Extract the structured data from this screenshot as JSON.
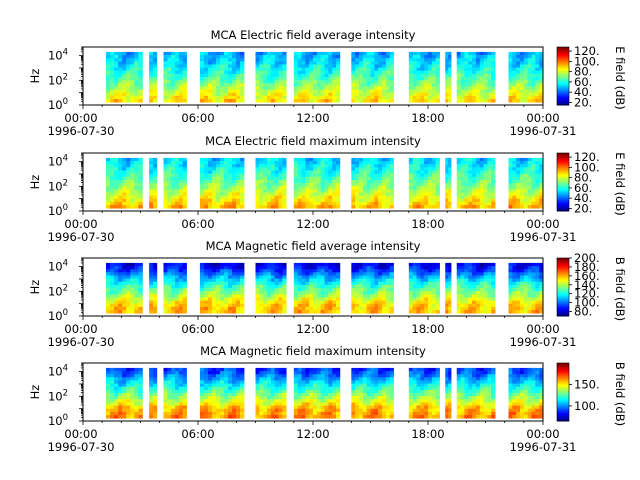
{
  "chart_data": [
    {
      "type": "heatmap",
      "title": "MCA  Electric field average intensity",
      "ylabel": "Hz",
      "y_scale": "log",
      "ylim": [
        1,
        50000
      ],
      "y_ticks": [
        {
          "value": 1,
          "base": "10",
          "exp": "0"
        },
        {
          "value": 100,
          "base": "10",
          "exp": "2"
        },
        {
          "value": 10000,
          "base": "10",
          "exp": "4"
        }
      ],
      "x_ticks": [
        "00:00",
        "06:00",
        "12:00",
        "18:00",
        "00:00"
      ],
      "x_date_labels": [
        "1996-07-30",
        "1996-07-31"
      ],
      "colorbar": {
        "label": "E field (dB)",
        "range": [
          15,
          128
        ],
        "ticks": [
          "20.",
          "40.",
          "60.",
          "80.",
          "100.",
          "120."
        ],
        "tick_values": [
          20,
          40,
          60,
          80,
          100,
          120
        ]
      },
      "freq_profile": [
        [
          0,
          90
        ],
        [
          0.25,
          78
        ],
        [
          0.5,
          65
        ],
        [
          0.75,
          55
        ],
        [
          1,
          48
        ]
      ],
      "data_blocks_hours": [
        [
          1.2,
          3.1
        ],
        [
          3.45,
          3.85
        ],
        [
          4.2,
          5.4
        ],
        [
          6.1,
          8.4
        ],
        [
          9.0,
          10.6
        ],
        [
          11.0,
          13.4
        ],
        [
          14.0,
          16.2
        ],
        [
          17.0,
          18.6
        ],
        [
          18.9,
          19.2
        ],
        [
          19.5,
          21.5
        ],
        [
          22.2,
          24.0
        ]
      ]
    },
    {
      "type": "heatmap",
      "title": "MCA  Electric field maximum intensity",
      "ylabel": "Hz",
      "y_scale": "log",
      "ylim": [
        1,
        50000
      ],
      "y_ticks": [
        {
          "value": 1,
          "base": "10",
          "exp": "0"
        },
        {
          "value": 100,
          "base": "10",
          "exp": "2"
        },
        {
          "value": 10000,
          "base": "10",
          "exp": "4"
        }
      ],
      "x_ticks": [
        "00:00",
        "06:00",
        "12:00",
        "18:00",
        "00:00"
      ],
      "x_date_labels": [
        "1996-07-30",
        "1996-07-31"
      ],
      "colorbar": {
        "label": "E field (dB)",
        "range": [
          15,
          128
        ],
        "ticks": [
          "20.",
          "40.",
          "60.",
          "80.",
          "100.",
          "120."
        ],
        "tick_values": [
          20,
          40,
          60,
          80,
          100,
          120
        ]
      },
      "freq_profile": [
        [
          0,
          95
        ],
        [
          0.25,
          82
        ],
        [
          0.5,
          70
        ],
        [
          0.75,
          60
        ],
        [
          1,
          52
        ]
      ],
      "data_blocks_hours": [
        [
          1.2,
          3.1
        ],
        [
          3.45,
          3.85
        ],
        [
          4.2,
          5.4
        ],
        [
          6.1,
          8.4
        ],
        [
          9.0,
          10.6
        ],
        [
          11.0,
          13.4
        ],
        [
          14.0,
          16.2
        ],
        [
          17.0,
          18.6
        ],
        [
          18.9,
          19.2
        ],
        [
          19.5,
          21.5
        ],
        [
          22.2,
          24.0
        ]
      ]
    },
    {
      "type": "heatmap",
      "title": "MCA  Magnetic field average intensity",
      "ylabel": "Hz",
      "y_scale": "log",
      "ylim": [
        1,
        50000
      ],
      "y_ticks": [
        {
          "value": 1,
          "base": "10",
          "exp": "0"
        },
        {
          "value": 100,
          "base": "10",
          "exp": "2"
        },
        {
          "value": 10000,
          "base": "10",
          "exp": "4"
        }
      ],
      "x_ticks": [
        "00:00",
        "06:00",
        "12:00",
        "18:00",
        "00:00"
      ],
      "x_date_labels": [
        "1996-07-30",
        "1996-07-31"
      ],
      "colorbar": {
        "label": "B field (dB)",
        "range": [
          70,
          200
        ],
        "ticks": [
          "80.",
          "100.",
          "120.",
          "140.",
          "160.",
          "180.",
          "200."
        ],
        "tick_values": [
          80,
          100,
          120,
          140,
          160,
          180,
          200
        ]
      },
      "freq_profile": [
        [
          0,
          160
        ],
        [
          0.2,
          155
        ],
        [
          0.35,
          140
        ],
        [
          0.55,
          125
        ],
        [
          0.75,
          105
        ],
        [
          0.88,
          90
        ],
        [
          1,
          82
        ]
      ],
      "data_blocks_hours": [
        [
          1.2,
          3.1
        ],
        [
          3.45,
          3.85
        ],
        [
          4.2,
          5.4
        ],
        [
          6.1,
          8.4
        ],
        [
          9.0,
          10.6
        ],
        [
          11.0,
          13.4
        ],
        [
          14.0,
          16.2
        ],
        [
          17.0,
          18.6
        ],
        [
          18.9,
          19.2
        ],
        [
          19.5,
          21.5
        ],
        [
          22.2,
          24.0
        ]
      ]
    },
    {
      "type": "heatmap",
      "title": "MCA  Magnetic field maximum intensity",
      "ylabel": "Hz",
      "y_scale": "log",
      "ylim": [
        1,
        50000
      ],
      "y_ticks": [
        {
          "value": 1,
          "base": "10",
          "exp": "0"
        },
        {
          "value": 100,
          "base": "10",
          "exp": "2"
        },
        {
          "value": 10000,
          "base": "10",
          "exp": "4"
        }
      ],
      "x_ticks": [
        "00:00",
        "06:00",
        "12:00",
        "18:00",
        "00:00"
      ],
      "x_date_labels": [
        "1996-07-30",
        "1996-07-31"
      ],
      "colorbar": {
        "label": "B field (dB)",
        "range": [
          65,
          200
        ],
        "ticks": [
          "100.",
          "150."
        ],
        "tick_values": [
          100,
          150
        ]
      },
      "freq_profile": [
        [
          0,
          165
        ],
        [
          0.2,
          158
        ],
        [
          0.35,
          142
        ],
        [
          0.55,
          125
        ],
        [
          0.75,
          108
        ],
        [
          0.88,
          95
        ],
        [
          1,
          88
        ]
      ],
      "data_blocks_hours": [
        [
          1.2,
          3.1
        ],
        [
          3.45,
          3.85
        ],
        [
          4.2,
          5.4
        ],
        [
          6.1,
          8.4
        ],
        [
          9.0,
          10.6
        ],
        [
          11.0,
          13.4
        ],
        [
          14.0,
          16.2
        ],
        [
          17.0,
          18.6
        ],
        [
          18.9,
          19.2
        ],
        [
          19.5,
          21.5
        ],
        [
          22.2,
          24.0
        ]
      ]
    }
  ]
}
